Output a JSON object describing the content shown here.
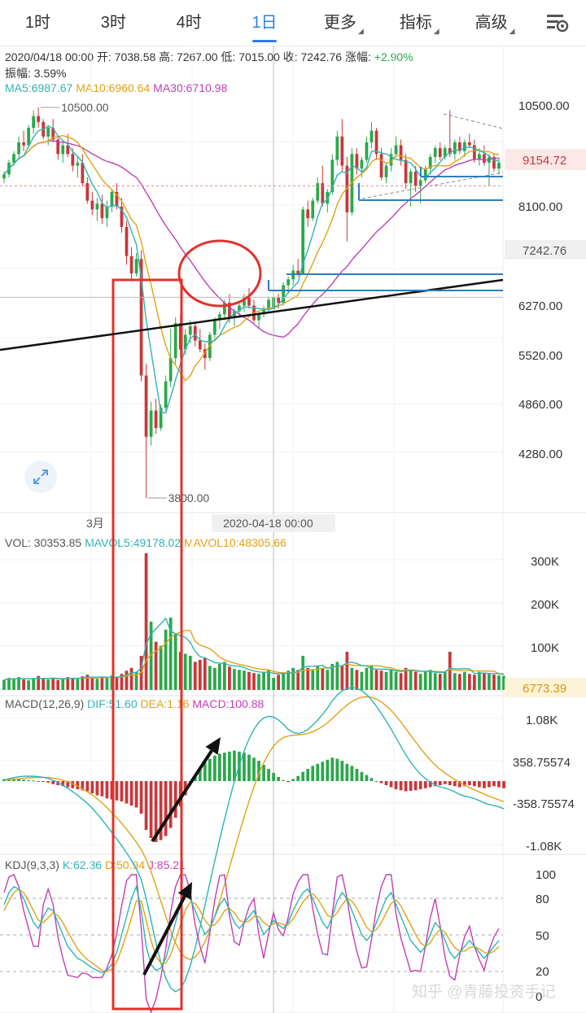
{
  "tabs": [
    {
      "label": "1时",
      "active": false,
      "dropdown": false
    },
    {
      "label": "3时",
      "active": false,
      "dropdown": false
    },
    {
      "label": "4时",
      "active": false,
      "dropdown": false
    },
    {
      "label": "1日",
      "active": true,
      "dropdown": false
    },
    {
      "label": "更多",
      "active": false,
      "dropdown": true
    },
    {
      "label": "指标",
      "active": false,
      "dropdown": true
    },
    {
      "label": "高级",
      "active": false,
      "dropdown": true
    }
  ],
  "settings_icon": "chart-settings-icon",
  "info": {
    "line1_prefix": "2020/04/18 00:00 开: 7038.58 高: 7267.00 低: 7015.00 收: 7242.76 涨幅: ",
    "change": "+2.90%",
    "change_color": "#2aa84a",
    "amplitude": "振幅: 3.59%",
    "ma5": "MA5:6987.67",
    "ma10": "MA10:6960.64",
    "ma30": "MA30:6710.98"
  },
  "vol_label": {
    "vol": "VOL: 30353.85",
    "mavol5": "MAVOL5:49178.02",
    "mavol10": "MAVOL10:48305.66"
  },
  "macd_label": {
    "name": "MACD(12,26,9)",
    "dif": "DIF:51.60",
    "dea": "DEA:1.16",
    "macd": "MACD:100.88"
  },
  "kdj_label": {
    "name": "KDJ(9,3,3)",
    "k": "K:62.36",
    "d": "D:50.94",
    "j": "J:85.21"
  },
  "watermark": "知乎 @青藤投资手记",
  "colors": {
    "up": "#2aa84a",
    "down": "#c8373a",
    "ma5": "#2fb3b3",
    "ma10": "#e1a214",
    "ma30": "#c23fb4",
    "annotation_red": "#e2322b",
    "annotation_blue": "#2a7fc1",
    "cursor_price_bg": "#f0f0f0",
    "current_price_bg": "#fde8e8"
  },
  "chart_data": [
    {
      "type": "candlestick",
      "panel": "price",
      "y_ticks": [
        10500,
        9154.72,
        8100,
        7242.76,
        6270,
        5520,
        4860,
        4280
      ],
      "y_tick_labels": [
        "10500.00",
        "9154.72",
        "8100.00",
        "7242.76",
        "6270.00",
        "5520.00",
        "4860.00",
        "4280.00"
      ],
      "ylim": [
        3600,
        11000
      ],
      "current_price_label": "9154.72",
      "cursor_price_label": "7242.76",
      "max_label": "10500.00",
      "min_label": "3800.00",
      "x_labels": [
        "3月"
      ],
      "cursor_x_label": "2020-04-18 00:00",
      "candles": [
        [
          9280,
          9400,
          9200,
          9350
        ],
        [
          9350,
          9600,
          9300,
          9550
        ],
        [
          9550,
          9750,
          9500,
          9700
        ],
        [
          9700,
          10000,
          9600,
          9900
        ],
        [
          9900,
          10100,
          9750,
          9850
        ],
        [
          9850,
          10200,
          9800,
          10150
        ],
        [
          10150,
          10450,
          10050,
          10350
        ],
        [
          10350,
          10500,
          10150,
          10250
        ],
        [
          10250,
          10300,
          9950,
          10000
        ],
        [
          10000,
          10200,
          9850,
          10150
        ],
        [
          10150,
          10300,
          9900,
          9950
        ],
        [
          9950,
          10000,
          9600,
          9700
        ],
        [
          9700,
          9900,
          9550,
          9850
        ],
        [
          9850,
          10050,
          9650,
          9700
        ],
        [
          9700,
          9800,
          9400,
          9500
        ],
        [
          9500,
          9650,
          9300,
          9550
        ],
        [
          9550,
          9700,
          9150,
          9200
        ],
        [
          9200,
          9300,
          8850,
          8900
        ],
        [
          8900,
          9050,
          8650,
          8750
        ],
        [
          8750,
          8950,
          8550,
          8850
        ],
        [
          8850,
          9000,
          8500,
          8600
        ],
        [
          8600,
          8900,
          8450,
          8800
        ],
        [
          8800,
          9100,
          8700,
          9050
        ],
        [
          9050,
          9200,
          8750,
          8800
        ],
        [
          8800,
          8950,
          8350,
          8450
        ],
        [
          8450,
          8550,
          7800,
          7950
        ],
        [
          7950,
          8100,
          7550,
          7650
        ],
        [
          7650,
          8000,
          7600,
          7900
        ],
        [
          7900,
          8050,
          5800,
          5900
        ],
        [
          5900,
          6100,
          3800,
          4850
        ],
        [
          4850,
          5450,
          4700,
          5300
        ],
        [
          5300,
          5500,
          4900,
          5000
        ],
        [
          5000,
          5400,
          4950,
          5350
        ],
        [
          5350,
          5900,
          5300,
          5800
        ],
        [
          5800,
          6700,
          5700,
          6200
        ],
        [
          6200,
          6900,
          6100,
          6800
        ],
        [
          6800,
          6950,
          6200,
          6350
        ],
        [
          6350,
          6700,
          6250,
          6600
        ],
        [
          6600,
          6850,
          6450,
          6750
        ],
        [
          6750,
          6800,
          6400,
          6500
        ],
        [
          6500,
          6700,
          6300,
          6350
        ],
        [
          6350,
          6450,
          6000,
          6200
        ],
        [
          6200,
          6650,
          6150,
          6600
        ],
        [
          6600,
          6900,
          6550,
          6850
        ],
        [
          6850,
          7000,
          6700,
          6950
        ],
        [
          6950,
          7200,
          6850,
          7150
        ],
        [
          7150,
          7300,
          6800,
          6900
        ],
        [
          6900,
          7050,
          6750,
          7000
        ],
        [
          7000,
          7150,
          6900,
          7100
        ],
        [
          7100,
          7300,
          7000,
          7250
        ],
        [
          7250,
          7400,
          7050,
          7100
        ],
        [
          7100,
          7200,
          6800,
          6850
        ],
        [
          6850,
          7000,
          6700,
          6950
        ],
        [
          6950,
          7100,
          6900,
          7050
        ],
        [
          7050,
          7250,
          7000,
          7200
        ],
        [
          7038.58,
          7267,
          7015,
          7242.76
        ],
        [
          7242,
          7300,
          7050,
          7150
        ],
        [
          7150,
          7500,
          7100,
          7450
        ],
        [
          7450,
          7600,
          7300,
          7550
        ],
        [
          7550,
          7800,
          7450,
          7700
        ],
        [
          7700,
          7900,
          7600,
          7650
        ],
        [
          7650,
          8800,
          7650,
          8750
        ],
        [
          8750,
          8900,
          8450,
          8600
        ],
        [
          8600,
          8950,
          8550,
          8900
        ],
        [
          8900,
          9300,
          8850,
          9200
        ],
        [
          9200,
          9500,
          8800,
          8850
        ],
        [
          8850,
          9100,
          8700,
          9050
        ],
        [
          9050,
          9700,
          9000,
          9600
        ],
        [
          9600,
          10100,
          9500,
          10000
        ],
        [
          10000,
          10300,
          9400,
          9500
        ],
        [
          9500,
          9650,
          8200,
          8700
        ],
        [
          8700,
          9800,
          8650,
          9700
        ],
        [
          9700,
          9800,
          9350,
          9450
        ],
        [
          9450,
          9650,
          9300,
          9600
        ],
        [
          9600,
          10000,
          9550,
          9900
        ],
        [
          9900,
          10250,
          9800,
          10100
        ],
        [
          10100,
          10150,
          9600,
          9700
        ],
        [
          9700,
          9800,
          9250,
          9300
        ],
        [
          9300,
          9550,
          9200,
          9500
        ],
        [
          9500,
          9800,
          9400,
          9700
        ],
        [
          9700,
          10000,
          9650,
          9850
        ],
        [
          9850,
          9950,
          9500,
          9600
        ],
        [
          9600,
          9700,
          9100,
          9200
        ],
        [
          9200,
          9450,
          8800,
          9400
        ],
        [
          9400,
          9500,
          9050,
          9150
        ],
        [
          9150,
          9300,
          8850,
          9250
        ],
        [
          9250,
          9500,
          9200,
          9450
        ],
        [
          9450,
          9700,
          9350,
          9650
        ],
        [
          9650,
          9850,
          9550,
          9800
        ],
        [
          9800,
          9900,
          9600,
          9650
        ],
        [
          9650,
          9850,
          9600,
          9800
        ],
        [
          9800,
          10450,
          9650,
          9700
        ],
        [
          9700,
          9950,
          9600,
          9900
        ],
        [
          9900,
          10000,
          9700,
          9750
        ],
        [
          9750,
          9950,
          9650,
          9900
        ],
        [
          9900,
          10050,
          9800,
          9850
        ],
        [
          9850,
          9950,
          9550,
          9600
        ],
        [
          9600,
          9800,
          9500,
          9700
        ],
        [
          9700,
          9850,
          9500,
          9550
        ],
        [
          9550,
          9700,
          9150,
          9650
        ],
        [
          9650,
          9700,
          9400,
          9450
        ],
        [
          9450,
          9650,
          9350,
          9550
        ]
      ],
      "ma": [
        {
          "name": "MA5",
          "value": 6987.67,
          "color": "#2fb3b3"
        },
        {
          "name": "MA10",
          "value": 6960.64,
          "color": "#e1a214"
        },
        {
          "name": "MA30",
          "value": 6710.98,
          "color": "#c23fb4"
        }
      ]
    },
    {
      "type": "bar",
      "panel": "volume",
      "y_tick_labels": [
        "300K",
        "200K",
        "100K",
        "6773.39"
      ],
      "ylim": [
        0,
        350000
      ],
      "values_k": [
        25,
        30,
        28,
        32,
        26,
        24,
        30,
        35,
        28,
        26,
        30,
        25,
        28,
        32,
        30,
        27,
        34,
        38,
        30,
        28,
        33,
        30,
        36,
        32,
        40,
        48,
        55,
        45,
        85,
        340,
        170,
        120,
        110,
        150,
        180,
        140,
        95,
        90,
        85,
        70,
        75,
        80,
        60,
        55,
        65,
        70,
        58,
        52,
        50,
        48,
        45,
        42,
        40,
        45,
        50,
        30,
        38,
        42,
        48,
        55,
        50,
        85,
        55,
        50,
        60,
        55,
        50,
        65,
        70,
        60,
        95,
        55,
        50,
        45,
        55,
        60,
        50,
        48,
        45,
        50,
        45,
        42,
        55,
        50,
        45,
        40,
        45,
        50,
        42,
        40,
        45,
        95,
        42,
        40,
        45,
        40,
        38,
        45,
        42,
        40,
        38,
        36,
        35
      ]
    },
    {
      "type": "bar",
      "panel": "macd",
      "y_tick_labels": [
        "1.08K",
        "358.75574",
        "-358.75574",
        "-1.08K"
      ],
      "ylim": [
        -1250,
        1250
      ],
      "histogram": [
        20,
        22,
        25,
        20,
        15,
        10,
        5,
        0,
        -5,
        -15,
        -30,
        -40,
        -50,
        -60,
        -70,
        -80,
        -90,
        -100,
        -120,
        -140,
        -150,
        -170,
        -180,
        -190,
        -200,
        -220,
        -240,
        -260,
        -320,
        -480,
        -560,
        -600,
        -580,
        -540,
        -460,
        -360,
        -250,
        -140,
        -30,
        60,
        130,
        180,
        220,
        250,
        270,
        280,
        290,
        300,
        290,
        280,
        260,
        230,
        200,
        160,
        120,
        80,
        40,
        10,
        -10,
        20,
        50,
        90,
        120,
        150,
        170,
        190,
        210,
        230,
        220,
        200,
        170,
        150,
        120,
        90,
        60,
        30,
        0,
        -20,
        -40,
        -60,
        -80,
        -90,
        -100,
        -95,
        -90,
        -80,
        -70,
        -60,
        -50,
        -40,
        -30,
        -40,
        -50,
        -60,
        -50,
        -40,
        -50,
        -60,
        -70,
        -60,
        -50,
        -60,
        -70
      ]
    },
    {
      "type": "line",
      "panel": "kdj",
      "y_tick_labels": [
        "100",
        "80",
        "50",
        "20",
        "0"
      ],
      "ylim": [
        0,
        110
      ],
      "series": [
        {
          "name": "K",
          "color": "#2fb3b3",
          "values": [
            75,
            85,
            90,
            88,
            80,
            70,
            60,
            55,
            65,
            72,
            70,
            60,
            50,
            40,
            35,
            30,
            28,
            25,
            22,
            20,
            18,
            20,
            25,
            35,
            50,
            65,
            80,
            90,
            70,
            40,
            25,
            20,
            22,
            30,
            45,
            60,
            75,
            85,
            80,
            70,
            60,
            50,
            55,
            65,
            75,
            80,
            70,
            60,
            55,
            60,
            65,
            70,
            60,
            50,
            55,
            62,
            58,
            55,
            60,
            70,
            78,
            85,
            88,
            80,
            70,
            60,
            55,
            65,
            78,
            85,
            80,
            70,
            60,
            50,
            45,
            50,
            60,
            70,
            80,
            85,
            75,
            65,
            55,
            45,
            40,
            35,
            40,
            50,
            60,
            55,
            45,
            35,
            30,
            35,
            40,
            45,
            40,
            35,
            30,
            35,
            40,
            45
          ]
        },
        {
          "name": "D",
          "color": "#e1a214",
          "values": [
            70,
            78,
            85,
            88,
            85,
            78,
            70,
            62,
            60,
            64,
            68,
            66,
            60,
            52,
            45,
            38,
            33,
            29,
            26,
            23,
            20,
            19,
            21,
            27,
            38,
            50,
            64,
            78,
            78,
            62,
            45,
            32,
            26,
            26,
            33,
            45,
            58,
            70,
            77,
            76,
            70,
            62,
            57,
            58,
            63,
            70,
            72,
            68,
            62,
            60,
            61,
            65,
            65,
            60,
            57,
            59,
            60,
            58,
            58,
            63,
            70,
            77,
            82,
            84,
            80,
            73,
            66,
            64,
            68,
            75,
            80,
            78,
            72,
            64,
            56,
            52,
            54,
            60,
            68,
            76,
            79,
            74,
            66,
            58,
            50,
            43,
            40,
            43,
            50,
            54,
            52,
            45,
            39,
            36,
            36,
            39,
            40,
            38,
            35,
            34,
            36,
            40
          ]
        },
        {
          "name": "J",
          "color": "#c23fb4",
          "values": [
            85,
            98,
            100,
            90,
            70,
            55,
            40,
            40,
            75,
            88,
            75,
            48,
            30,
            16,
            15,
            14,
            18,
            17,
            14,
            14,
            14,
            22,
            33,
            51,
            74,
            95,
            100,
            100,
            55,
            -4,
            -15,
            -4,
            14,
            38,
            69,
            90,
            100,
            100,
            86,
            58,
            40,
            26,
            51,
            79,
            99,
            100,
            66,
            44,
            41,
            60,
            73,
            80,
            50,
            30,
            51,
            68,
            54,
            49,
            64,
            84,
            94,
            100,
            100,
            72,
            50,
            34,
            33,
            67,
            98,
            100,
            80,
            54,
            36,
            22,
            23,
            46,
            72,
            90,
            100,
            100,
            67,
            47,
            33,
            19,
            20,
            19,
            40,
            64,
            80,
            57,
            31,
            15,
            12,
            33,
            48,
            57,
            40,
            29,
            20,
            37,
            48,
            55
          ]
        }
      ]
    }
  ]
}
